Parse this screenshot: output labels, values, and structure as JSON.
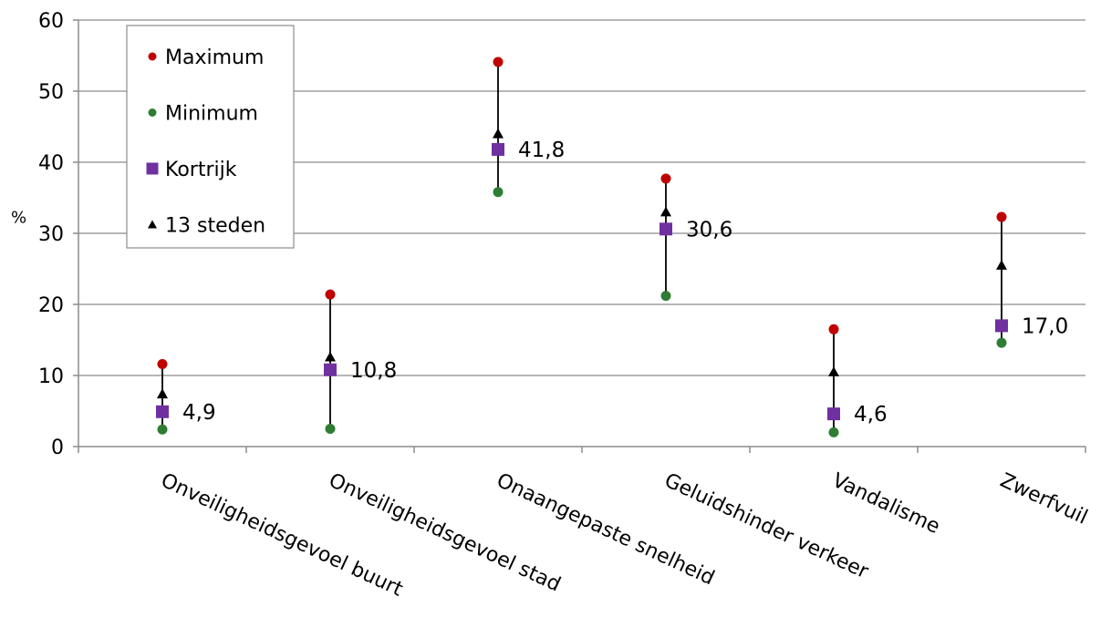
{
  "chart_data": {
    "type": "scatter",
    "categories": [
      "Onveiligheidsgevoel buurt",
      "Onveiligheidsgevoel stad",
      "Onaangepaste snelheid",
      "Geluidshinder verkeer",
      "Vandalisme",
      "Zwerfvuil"
    ],
    "series": [
      {
        "name": "Maximum",
        "values": [
          11.6,
          21.4,
          54.1,
          37.7,
          16.5,
          32.3
        ],
        "color": "#c00000",
        "marker": "circle"
      },
      {
        "name": "Minimum",
        "values": [
          2.4,
          2.5,
          35.8,
          21.2,
          2.0,
          14.6
        ],
        "color": "#2e7d32",
        "marker": "circle"
      },
      {
        "name": "Kortrijk",
        "values": [
          4.9,
          10.8,
          41.8,
          30.6,
          4.6,
          17.0
        ],
        "color": "#7030a0",
        "marker": "square"
      },
      {
        "name": "13 steden",
        "values": [
          7.4,
          12.6,
          44.0,
          33.0,
          10.5,
          25.5
        ],
        "color": "#000000",
        "marker": "triangle"
      }
    ],
    "data_labels": [
      "4,9",
      "10,8",
      "41,8",
      "30,6",
      "4,6",
      "17,0"
    ],
    "ylabel": "%",
    "ylim": [
      0,
      60
    ],
    "yticks": [
      "0",
      "10",
      "20",
      "30",
      "40",
      "50",
      "60"
    ],
    "grid": true,
    "legend_position": "top-left"
  }
}
